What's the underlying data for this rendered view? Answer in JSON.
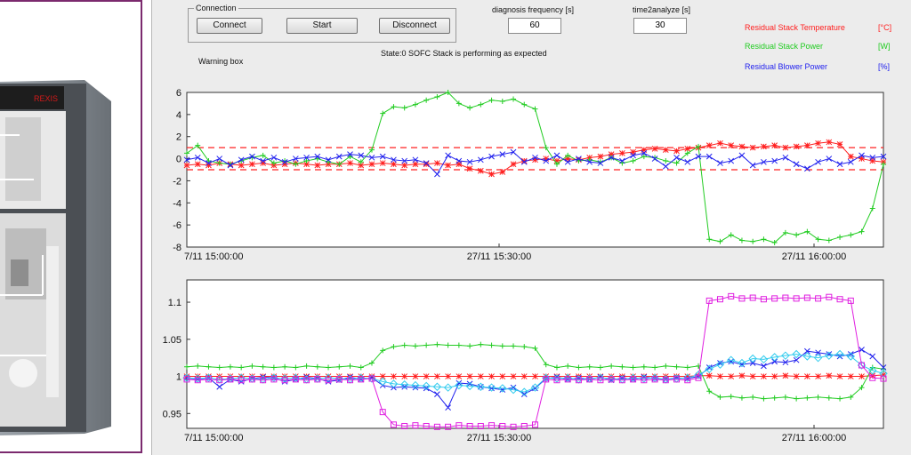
{
  "controls": {
    "connection_legend": "Connection",
    "connect_label": "Connect",
    "start_label": "Start",
    "disconnect_label": "Disconnect",
    "diagnosis_frequency_label": "diagnosis frequency [s]",
    "diagnosis_frequency_value": "60",
    "time2analyze_label": "time2analyze [s]",
    "time2analyze_value": "30",
    "warning_box_label": "Warning box",
    "state_text": "State:0  SOFC Stack is performing as expected"
  },
  "legend": [
    {
      "name": "Residual Stack Temperature",
      "unit": "[°C]",
      "color": "#ff2020"
    },
    {
      "name": "Residual Stack Power",
      "unit": "[W]",
      "color": "#22cc22"
    },
    {
      "name": "Residual Blower Power",
      "unit": "[%]",
      "color": "#2222ee"
    }
  ],
  "colors": {
    "red": "#ff2020",
    "green": "#22cc22",
    "blue": "#2222ee",
    "magenta": "#e020e0",
    "cyan": "#33ccee",
    "threshold": "#ff2020"
  },
  "chart_data": [
    {
      "type": "line",
      "x_ticks": [
        "7/11 15:00:00",
        "27/11 15:30:00",
        "27/11 16:00:00"
      ],
      "y_ticks": [
        "6",
        "4",
        "2",
        "0",
        "-2",
        "-4",
        "-6",
        "-8"
      ],
      "ylim": [
        -8,
        6
      ],
      "xlim": [
        0,
        64
      ],
      "thresholds": [
        1,
        -1
      ],
      "series": [
        {
          "color": "red",
          "marker": "star",
          "values": [
            -0.6,
            -0.5,
            -0.6,
            -0.4,
            -0.5,
            -0.6,
            -0.5,
            -0.4,
            -0.6,
            -0.5,
            -0.4,
            -0.5,
            -0.6,
            -0.5,
            -0.5,
            -0.4,
            -0.6,
            -0.5,
            -0.4,
            -0.5,
            -0.6,
            -0.5,
            -0.5,
            -0.4,
            -0.6,
            -0.5,
            -0.9,
            -1.1,
            -1.4,
            -1.2,
            -0.5,
            -0.2,
            -0.1,
            0.0,
            -0.2,
            0.0,
            -0.1,
            0.1,
            0.2,
            0.4,
            0.5,
            0.6,
            0.8,
            0.9,
            0.8,
            0.7,
            0.9,
            1.0,
            1.2,
            1.4,
            1.2,
            1.1,
            1.0,
            1.1,
            1.2,
            1.0,
            1.1,
            1.2,
            1.4,
            1.5,
            1.3,
            0.2,
            0.0,
            -0.2,
            -0.3
          ]
        },
        {
          "color": "green",
          "marker": "plus",
          "values": [
            0.5,
            1.2,
            -0.2,
            -0.4,
            -0.5,
            -0.2,
            0.1,
            0.3,
            -0.4,
            -0.2,
            -0.5,
            -0.2,
            0.0,
            -0.3,
            -0.5,
            0.2,
            -0.3,
            0.8,
            4.1,
            4.7,
            4.6,
            4.9,
            5.3,
            5.6,
            6.0,
            5.0,
            4.6,
            4.9,
            5.3,
            5.2,
            5.4,
            4.9,
            4.5,
            1.0,
            -0.5,
            0.3,
            -0.2,
            -0.1,
            -0.3,
            0.1,
            -0.4,
            -0.2,
            0.2,
            0.1,
            -0.2,
            -0.4,
            0.5,
            1.1,
            -7.3,
            -7.5,
            -6.9,
            -7.4,
            -7.5,
            -7.3,
            -7.6,
            -6.7,
            -6.9,
            -6.6,
            -7.3,
            -7.4,
            -7.1,
            -6.9,
            -6.6,
            -4.5,
            -0.5
          ]
        },
        {
          "color": "blue",
          "marker": "cross",
          "values": [
            -0.1,
            0.1,
            -0.4,
            0.0,
            -0.6,
            -0.1,
            0.2,
            -0.2,
            0.1,
            -0.3,
            0.0,
            0.1,
            0.2,
            -0.1,
            0.2,
            0.4,
            0.3,
            0.1,
            0.2,
            -0.1,
            -0.2,
            -0.1,
            -0.4,
            -1.4,
            0.3,
            -0.2,
            -0.3,
            -0.1,
            0.2,
            0.4,
            0.6,
            -0.3,
            0.1,
            -0.2,
            0.3,
            -0.3,
            0.0,
            -0.3,
            -0.4,
            0.1,
            -0.2,
            0.3,
            0.5,
            0.0,
            -0.7,
            0.1,
            -0.3,
            0.2,
            0.2,
            -0.4,
            -0.2,
            0.3,
            -0.6,
            -0.3,
            -0.2,
            0.1,
            -0.5,
            -0.9,
            -0.3,
            0.0,
            -0.5,
            -0.3,
            0.3,
            0.1,
            0.2
          ]
        }
      ]
    },
    {
      "type": "line",
      "x_ticks": [
        "7/11 15:00:00",
        "27/11 15:30:00",
        "27/11 16:00:00"
      ],
      "y_ticks": [
        "1.1",
        "1.05",
        "1",
        "0.95"
      ],
      "ylim": [
        0.93,
        1.13
      ],
      "xlim": [
        0,
        64
      ],
      "series": [
        {
          "color": "red",
          "marker": "star",
          "values": [
            1.0,
            1.0,
            1.0,
            1.0,
            1.0,
            1.0,
            1.0,
            1.0,
            1.0,
            1.0,
            1.0,
            1.0,
            1.0,
            1.0,
            1.0,
            1.0,
            1.0,
            1.0,
            1.0,
            1.0,
            1.0,
            1.0,
            1.0,
            1.0,
            1.0,
            1.0,
            1.0,
            1.0,
            1.0,
            1.0,
            1.0,
            1.0,
            1.0,
            1.0,
            1.0,
            1.0,
            1.0,
            1.0,
            1.0,
            1.0,
            1.0,
            1.0,
            1.0,
            1.0,
            1.0,
            1.0,
            1.0,
            1.001,
            1.001,
            1.0,
            1.0,
            1.001,
            1.0,
            1.0,
            1.0,
            1.001,
            1.0,
            1.0,
            1.0,
            1.001,
            1.0,
            1.0,
            1.0,
            1.001,
            1.002
          ]
        },
        {
          "color": "green",
          "marker": "plus",
          "values": [
            1.013,
            1.014,
            1.013,
            1.012,
            1.013,
            1.012,
            1.014,
            1.013,
            1.012,
            1.013,
            1.012,
            1.014,
            1.013,
            1.012,
            1.013,
            1.014,
            1.012,
            1.018,
            1.035,
            1.04,
            1.042,
            1.041,
            1.042,
            1.043,
            1.042,
            1.042,
            1.041,
            1.043,
            1.042,
            1.041,
            1.041,
            1.04,
            1.038,
            1.016,
            1.012,
            1.014,
            1.012,
            1.013,
            1.012,
            1.014,
            1.013,
            1.012,
            1.013,
            1.012,
            1.014,
            1.013,
            1.012,
            1.014,
            0.98,
            0.972,
            0.973,
            0.971,
            0.972,
            0.97,
            0.971,
            0.972,
            0.97,
            0.971,
            0.972,
            0.971,
            0.97,
            0.972,
            0.985,
            1.012,
            1.01
          ]
        },
        {
          "color": "blue",
          "marker": "cross",
          "values": [
            0.998,
            0.996,
            0.998,
            0.986,
            0.996,
            0.993,
            0.997,
            0.999,
            0.998,
            0.993,
            0.996,
            0.999,
            0.997,
            0.993,
            0.995,
            0.999,
            0.996,
            0.998,
            0.988,
            0.985,
            0.986,
            0.985,
            0.984,
            0.976,
            0.958,
            0.991,
            0.99,
            0.986,
            0.984,
            0.982,
            0.985,
            0.976,
            0.984,
            0.997,
            0.999,
            0.996,
            0.998,
            0.996,
            0.999,
            0.995,
            0.998,
            0.996,
            0.999,
            0.997,
            0.996,
            0.998,
            0.997,
            1.0,
            1.012,
            1.018,
            1.02,
            1.016,
            1.018,
            1.014,
            1.02,
            1.019,
            1.022,
            1.034,
            1.032,
            1.03,
            1.027,
            1.03,
            1.036,
            1.027,
            1.012
          ]
        },
        {
          "color": "cyan",
          "marker": "diamond",
          "values": [
            0.998,
            0.997,
            0.998,
            0.996,
            0.997,
            0.998,
            0.997,
            0.996,
            0.998,
            0.997,
            0.998,
            0.996,
            0.997,
            0.998,
            0.997,
            0.996,
            0.998,
            0.997,
            0.993,
            0.99,
            0.989,
            0.988,
            0.987,
            0.986,
            0.985,
            0.988,
            0.987,
            0.986,
            0.985,
            0.984,
            0.982,
            0.979,
            0.985,
            0.998,
            0.997,
            0.998,
            0.996,
            0.997,
            0.998,
            0.997,
            0.996,
            0.998,
            0.997,
            0.998,
            0.996,
            0.997,
            0.998,
            1.002,
            1.01,
            1.016,
            1.022,
            1.018,
            1.024,
            1.023,
            1.026,
            1.028,
            1.03,
            1.027,
            1.025,
            1.028,
            1.03,
            1.027,
            1.015,
            1.008,
            1.004
          ]
        },
        {
          "color": "magenta",
          "marker": "square",
          "values": [
            0.996,
            0.995,
            0.996,
            0.995,
            0.996,
            0.995,
            0.996,
            0.995,
            0.996,
            0.995,
            0.996,
            0.995,
            0.996,
            0.995,
            0.996,
            0.995,
            0.996,
            0.997,
            0.952,
            0.935,
            0.933,
            0.934,
            0.933,
            0.932,
            0.932,
            0.934,
            0.933,
            0.933,
            0.934,
            0.933,
            0.932,
            0.933,
            0.935,
            0.996,
            0.995,
            0.996,
            0.995,
            0.996,
            0.995,
            0.996,
            0.995,
            0.996,
            0.995,
            0.996,
            0.995,
            0.996,
            0.995,
            0.998,
            1.102,
            1.104,
            1.108,
            1.105,
            1.106,
            1.104,
            1.105,
            1.106,
            1.105,
            1.106,
            1.105,
            1.107,
            1.104,
            1.102,
            1.015,
            0.998,
            0.997
          ]
        }
      ]
    }
  ]
}
